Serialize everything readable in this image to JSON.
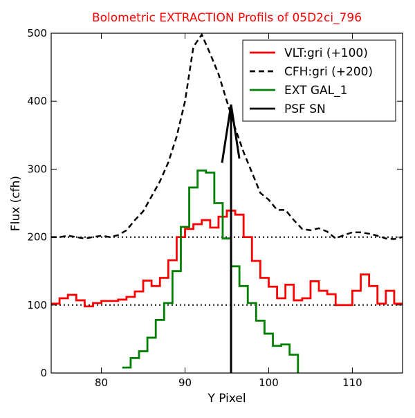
{
  "chart_data": {
    "type": "line",
    "title": "Bolometric EXTRACTION Profils of 05D2ci_796",
    "xlabel": "Y Pixel",
    "ylabel": "Flux (cfh)",
    "xlim": [
      74,
      116
    ],
    "ylim": [
      0,
      500
    ],
    "x_ticks": [
      80,
      90,
      100,
      110
    ],
    "y_ticks": [
      0,
      100,
      200,
      300,
      400,
      500
    ],
    "grid": false,
    "legend_position": "top-right",
    "colors": {
      "title": "#ff0000",
      "vlt": "#ff0000",
      "cfh": "#000000",
      "ext": "#008000",
      "psf": "#000000",
      "axes": "#000000"
    },
    "series": [
      {
        "name": "VLT:gri (+100)",
        "style": "steps",
        "color": "#ff0000",
        "x": [
          74,
          75,
          76,
          77,
          78,
          79,
          80,
          81,
          82,
          83,
          84,
          85,
          86,
          87,
          88,
          89,
          90,
          91,
          92,
          93,
          94,
          95,
          96,
          97,
          98,
          99,
          100,
          101,
          102,
          103,
          104,
          105,
          106,
          107,
          108,
          109,
          110,
          111,
          112,
          113,
          114,
          115
        ],
        "y": [
          102,
          110,
          115,
          107,
          98,
          103,
          106,
          106,
          108,
          112,
          120,
          136,
          128,
          140,
          166,
          200,
          212,
          219,
          225,
          214,
          230,
          239,
          233,
          200,
          165,
          140,
          127,
          110,
          130,
          107,
          110,
          135,
          121,
          116,
          100,
          100,
          121,
          145,
          128,
          102,
          121,
          102
        ]
      },
      {
        "name": "CFH:gri (+200)",
        "style": "line",
        "color": "#000000",
        "x": [
          74,
          75,
          76,
          77,
          78,
          79,
          80,
          81,
          82,
          83,
          84,
          85,
          86,
          87,
          88,
          89,
          90,
          91,
          92,
          93,
          94,
          95,
          96,
          97,
          98,
          99,
          100,
          101,
          102,
          103,
          104,
          105,
          106,
          107,
          108,
          109,
          110,
          111,
          112,
          113,
          114,
          115,
          116
        ],
        "y": [
          200,
          200,
          202,
          200,
          198,
          200,
          202,
          200,
          203,
          210,
          225,
          238,
          260,
          282,
          310,
          348,
          400,
          480,
          498,
          470,
          440,
          400,
          360,
          325,
          295,
          265,
          255,
          240,
          240,
          225,
          212,
          210,
          213,
          208,
          198,
          203,
          207,
          207,
          205,
          202,
          198,
          197,
          200
        ]
      },
      {
        "name": "EXT GAL_1",
        "style": "steps",
        "color": "#008000",
        "x": [
          82.5,
          83.5,
          84.5,
          85.5,
          86.5,
          87.5,
          88.5,
          89.5,
          90.5,
          91.5,
          92.5,
          93.5,
          94.5,
          95.5,
          96.5,
          97.5,
          98.5,
          99.5,
          100.5,
          101.5,
          102.5
        ],
        "y": [
          8,
          22,
          32,
          52,
          78,
          103,
          150,
          215,
          273,
          298,
          295,
          250,
          198,
          157,
          128,
          103,
          77,
          58,
          40,
          42,
          27
        ]
      },
      {
        "name": "PSF SN",
        "style": "arrow",
        "color": "#000000",
        "x": [
          95.5,
          95.5
        ],
        "y": [
          0,
          395
        ]
      }
    ],
    "reference_lines": [
      100,
      200
    ]
  }
}
